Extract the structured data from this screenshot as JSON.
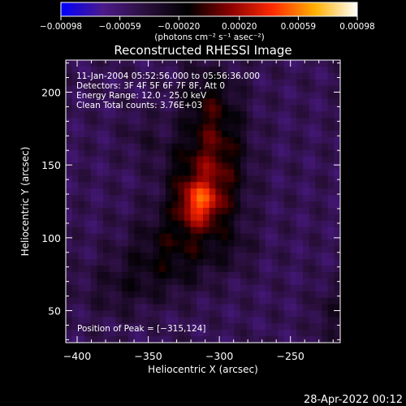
{
  "chart_data": {
    "type": "heatmap",
    "title": "Reconstructed RHESSI Image",
    "xlabel": "Heliocentric X (arcsec)",
    "ylabel": "Heliocentric Y (arcsec)",
    "xlim": [
      -408,
      -215
    ],
    "ylim": [
      28,
      222
    ],
    "xticks": [
      {
        "v": -400,
        "label": "−400"
      },
      {
        "v": -350,
        "label": "−350"
      },
      {
        "v": -300,
        "label": "−300"
      },
      {
        "v": -250,
        "label": "−250"
      }
    ],
    "yticks": [
      {
        "v": 50,
        "label": "50"
      },
      {
        "v": 100,
        "label": "100"
      },
      {
        "v": 150,
        "label": "150"
      },
      {
        "v": 200,
        "label": "200"
      }
    ],
    "colorbar": {
      "min": -0.00098,
      "max": 0.00098,
      "ticks": [
        {
          "v": -0.00098,
          "label": "−0.00098"
        },
        {
          "v": -0.00059,
          "label": "−0.00059"
        },
        {
          "v": -0.0002,
          "label": "−0.00020"
        },
        {
          "v": 0.0002,
          "label": "0.00020"
        },
        {
          "v": 0.00059,
          "label": "0.00059"
        },
        {
          "v": 0.00098,
          "label": "0.00098"
        }
      ],
      "unit_label": "(photons cm⁻² s⁻¹ asec⁻²)"
    },
    "annotations": [
      "11-Jan-2004 05:52:56.000 to 05:56:36.000",
      "Detectors: 3F 4F 5F 6F 7F 8F, Att 0",
      "Energy Range: 12.0 - 25.0 keV",
      "Clean     Total counts: 3.76E+03"
    ],
    "peak_label": "Position of Peak = [−315,124]",
    "peak": {
      "x": -315,
      "y": 124,
      "value": 0.00098
    },
    "sources": [
      {
        "x": -315,
        "y": 124,
        "sx": 10,
        "sy": 10,
        "amp": 0.00055
      },
      {
        "x": -306,
        "y": 133,
        "sx": 16,
        "sy": 24,
        "amp": 0.00028
      },
      {
        "x": -300,
        "y": 165,
        "sx": 14,
        "sy": 30,
        "amp": 0.00034
      },
      {
        "x": -325,
        "y": 148,
        "sx": 14,
        "sy": 18,
        "amp": 0.0002
      },
      {
        "x": -328,
        "y": 100,
        "sx": 22,
        "sy": 16,
        "amp": 0.0003
      },
      {
        "x": -345,
        "y": 76,
        "sx": 26,
        "sy": 14,
        "amp": 0.0002
      },
      {
        "x": -312,
        "y": 195,
        "sx": 12,
        "sy": 16,
        "amp": 0.00022
      },
      {
        "x": -355,
        "y": 170,
        "sx": 10,
        "sy": 12,
        "amp": 0.00012
      },
      {
        "x": -372,
        "y": 60,
        "sx": 18,
        "sy": 12,
        "amp": 0.00012
      },
      {
        "x": -222,
        "y": 48,
        "sx": 8,
        "sy": 14,
        "amp": 0.00018
      },
      {
        "x": -288,
        "y": 92,
        "sx": 10,
        "sy": 10,
        "amp": 0.0001
      }
    ],
    "background": -0.0005,
    "grid": false
  },
  "footer": "28-Apr-2022 00:12",
  "colors": {
    "background": "#000000",
    "foreground": "#ffffff",
    "colormap": [
      "#0000ff",
      "#4c1a8a",
      "#2a0f3c",
      "#000000",
      "#8a0000",
      "#ff2a00",
      "#ffb000",
      "#ffffff"
    ]
  }
}
